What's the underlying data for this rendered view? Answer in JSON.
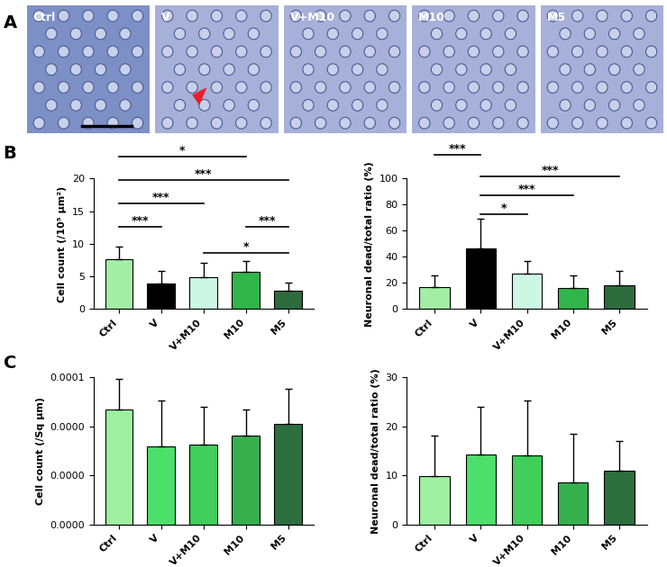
{
  "panel_labels": [
    "A",
    "B",
    "C"
  ],
  "images": {
    "labels": [
      "Ctrl",
      "V",
      "V+M10",
      "M10",
      "M5"
    ]
  },
  "chart_data": [
    {
      "type": "bar",
      "y_label": "Cell count (/10⁵ µm²)",
      "categories": [
        "Ctrl",
        "V",
        "V+M10",
        "M10",
        "M5"
      ],
      "values": [
        7.6,
        3.9,
        4.9,
        5.7,
        2.8
      ],
      "error": [
        2.0,
        1.9,
        2.2,
        1.6,
        1.3
      ],
      "colors": [
        "#a3eea7",
        "#000000",
        "#ccf7e3",
        "#30b54a",
        "#2d6b3d"
      ],
      "ylim": [
        0,
        20
      ],
      "yticks": [
        0,
        5,
        10,
        15,
        20
      ],
      "annotations": [
        {
          "from": "Ctrl",
          "to": "M10",
          "y": 23.4,
          "text": "*"
        },
        {
          "from": "Ctrl",
          "to": "M5",
          "y": 19.8,
          "text": "***"
        },
        {
          "from": "Ctrl",
          "to": "V+M10",
          "y": 16.2,
          "text": "***"
        },
        {
          "from": "Ctrl",
          "to": "V",
          "y": 12.6,
          "text": "***"
        },
        {
          "from": "M10",
          "to": "M5",
          "y": 12.6,
          "text": "***"
        },
        {
          "from": "V+M10",
          "to": "M5",
          "y": 8.6,
          "text": "*"
        }
      ]
    },
    {
      "type": "bar",
      "y_label": "Neuronal dead/total ratio (%)",
      "categories": [
        "Ctrl",
        "V",
        "V+M10",
        "M10",
        "M5"
      ],
      "values": [
        16.5,
        46.5,
        27.5,
        16.0,
        18.5
      ],
      "error": [
        9.0,
        22.5,
        9.0,
        10.0,
        10.5
      ],
      "colors": [
        "#a3eea7",
        "#000000",
        "#ccf7e3",
        "#30b54a",
        "#2d6b3d"
      ],
      "ylim": [
        0,
        100
      ],
      "yticks": [
        0,
        20,
        40,
        60,
        80,
        100
      ],
      "annotations": [
        {
          "from": "Ctrl",
          "to": "V",
          "y": 118,
          "text": "***"
        },
        {
          "from": "V",
          "to": "M5",
          "y": 102,
          "text": "***"
        },
        {
          "from": "V",
          "to": "M10",
          "y": 87,
          "text": "***"
        },
        {
          "from": "V",
          "to": "V+M10",
          "y": 73,
          "text": "*"
        }
      ]
    },
    {
      "type": "bar",
      "y_label": "Cell count (/Sq µm)",
      "categories": [
        "Ctrl",
        "V",
        "V+M10",
        "M10",
        "M5"
      ],
      "values": [
        4.68e-05,
        3.18e-05,
        3.24e-05,
        3.6e-05,
        4.08e-05
      ],
      "error": [
        1.26e-05,
        1.86e-05,
        1.56e-05,
        1.08e-05,
        1.44e-05
      ],
      "colors": [
        "#9ef0a0",
        "#4ce06a",
        "#3fcf5a",
        "#36b04d",
        "#2d6e3f"
      ],
      "ylim": [
        0,
        6e-05
      ],
      "yticks": [
        {
          "value": 0,
          "label": "0.0000"
        },
        {
          "value": 2e-05,
          "label": "0.0000"
        },
        {
          "value": 4e-05,
          "label": "0.0000"
        },
        {
          "value": 6e-05,
          "label": "0.0001"
        }
      ],
      "annotations": []
    },
    {
      "type": "bar",
      "y_label": "Neuronal dead/total ratio (%)",
      "categories": [
        "Ctrl",
        "V",
        "V+M10",
        "M10",
        "M5"
      ],
      "values": [
        9.8,
        14.2,
        14.0,
        8.5,
        10.9
      ],
      "error": [
        8.3,
        9.7,
        11.2,
        10.0,
        6.1
      ],
      "colors": [
        "#9ef0a0",
        "#4ce06a",
        "#3fcf5a",
        "#36b04d",
        "#2d6e3f"
      ],
      "ylim": [
        0,
        30
      ],
      "yticks": [
        0,
        10,
        20,
        30
      ],
      "annotations": []
    }
  ]
}
